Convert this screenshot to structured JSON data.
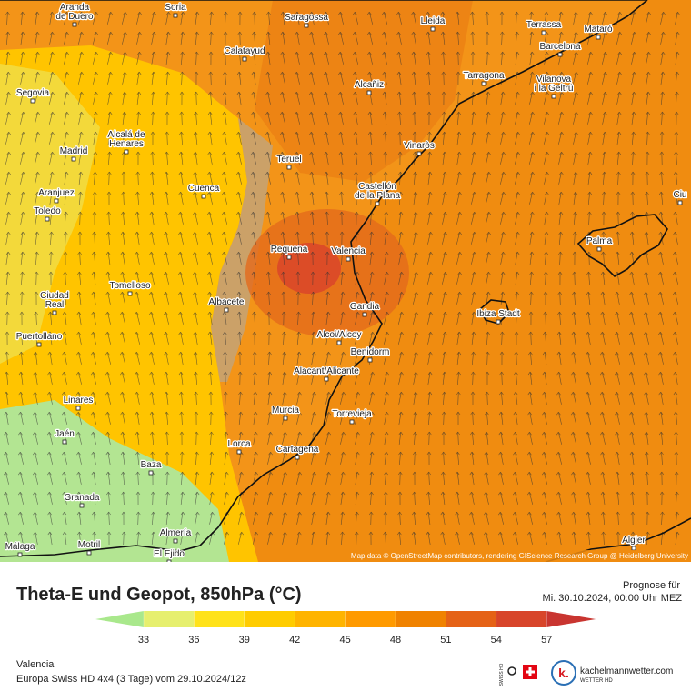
{
  "map": {
    "cities": [
      [
        "Aranda",
        "de Duero"
      ],
      "Soria",
      "Saragossa",
      "Lleida",
      "Terrassa",
      "Mataró",
      "Barcelona",
      "Calatayud",
      "Tarragona",
      [
        "Vilanova",
        "i la Geltrú"
      ],
      "Alcañiz",
      "Segovia",
      [
        "Alcalá de",
        "Henares"
      ],
      "Madrid",
      "Vinaròs",
      "Teruel",
      [
        "Castellón",
        "de la Plana"
      ],
      "Cuenca",
      "Aranjuez",
      "Toledo",
      "Palma",
      "Requena",
      "Valencia",
      "Tomelloso",
      [
        "Ciudad",
        "Real"
      ],
      "Albacete",
      "Gandia",
      "Ibiza Stadt",
      "Alcoi/Alcoy",
      "Puertollano",
      "Benidorm",
      "Alacant/Alicante",
      "Linares",
      "Murcia",
      "Torrevieja",
      "Jaén",
      "Lorca",
      "Cartagena",
      "Baza",
      "Granada",
      "Almería",
      "Algier",
      "Motril",
      "Málaga",
      "El Ejido",
      "Ciu"
    ],
    "attribution": "Map data © OpenStreetMap contributors, rendering GIScience Research Group @ Heidelberg University"
  },
  "footer": {
    "title": "Theta-E und Geopot, 850hPa (°C)",
    "forecast_label": "Prognose für",
    "forecast_time": "Mi. 30.10.2024, 00:00 Uhr MEZ",
    "location": "Valencia",
    "model": "Europa Swiss HD 4x4 (3 Tage) vom  29.10.2024/12z",
    "brand": "kachelmannwetter.com",
    "brand_sub": "WETTER HD",
    "swiss_logo": "SWISS HD",
    "logo_letter": "k."
  },
  "legend": {
    "ticks": [
      33,
      36,
      39,
      42,
      45,
      48,
      51,
      54,
      57
    ],
    "colors": [
      "#a9e88c",
      "#e6ef6e",
      "#ffe21a",
      "#ffcc00",
      "#ffb400",
      "#ff9a00",
      "#f08200",
      "#e56216",
      "#d8452a",
      "#c93530"
    ]
  }
}
